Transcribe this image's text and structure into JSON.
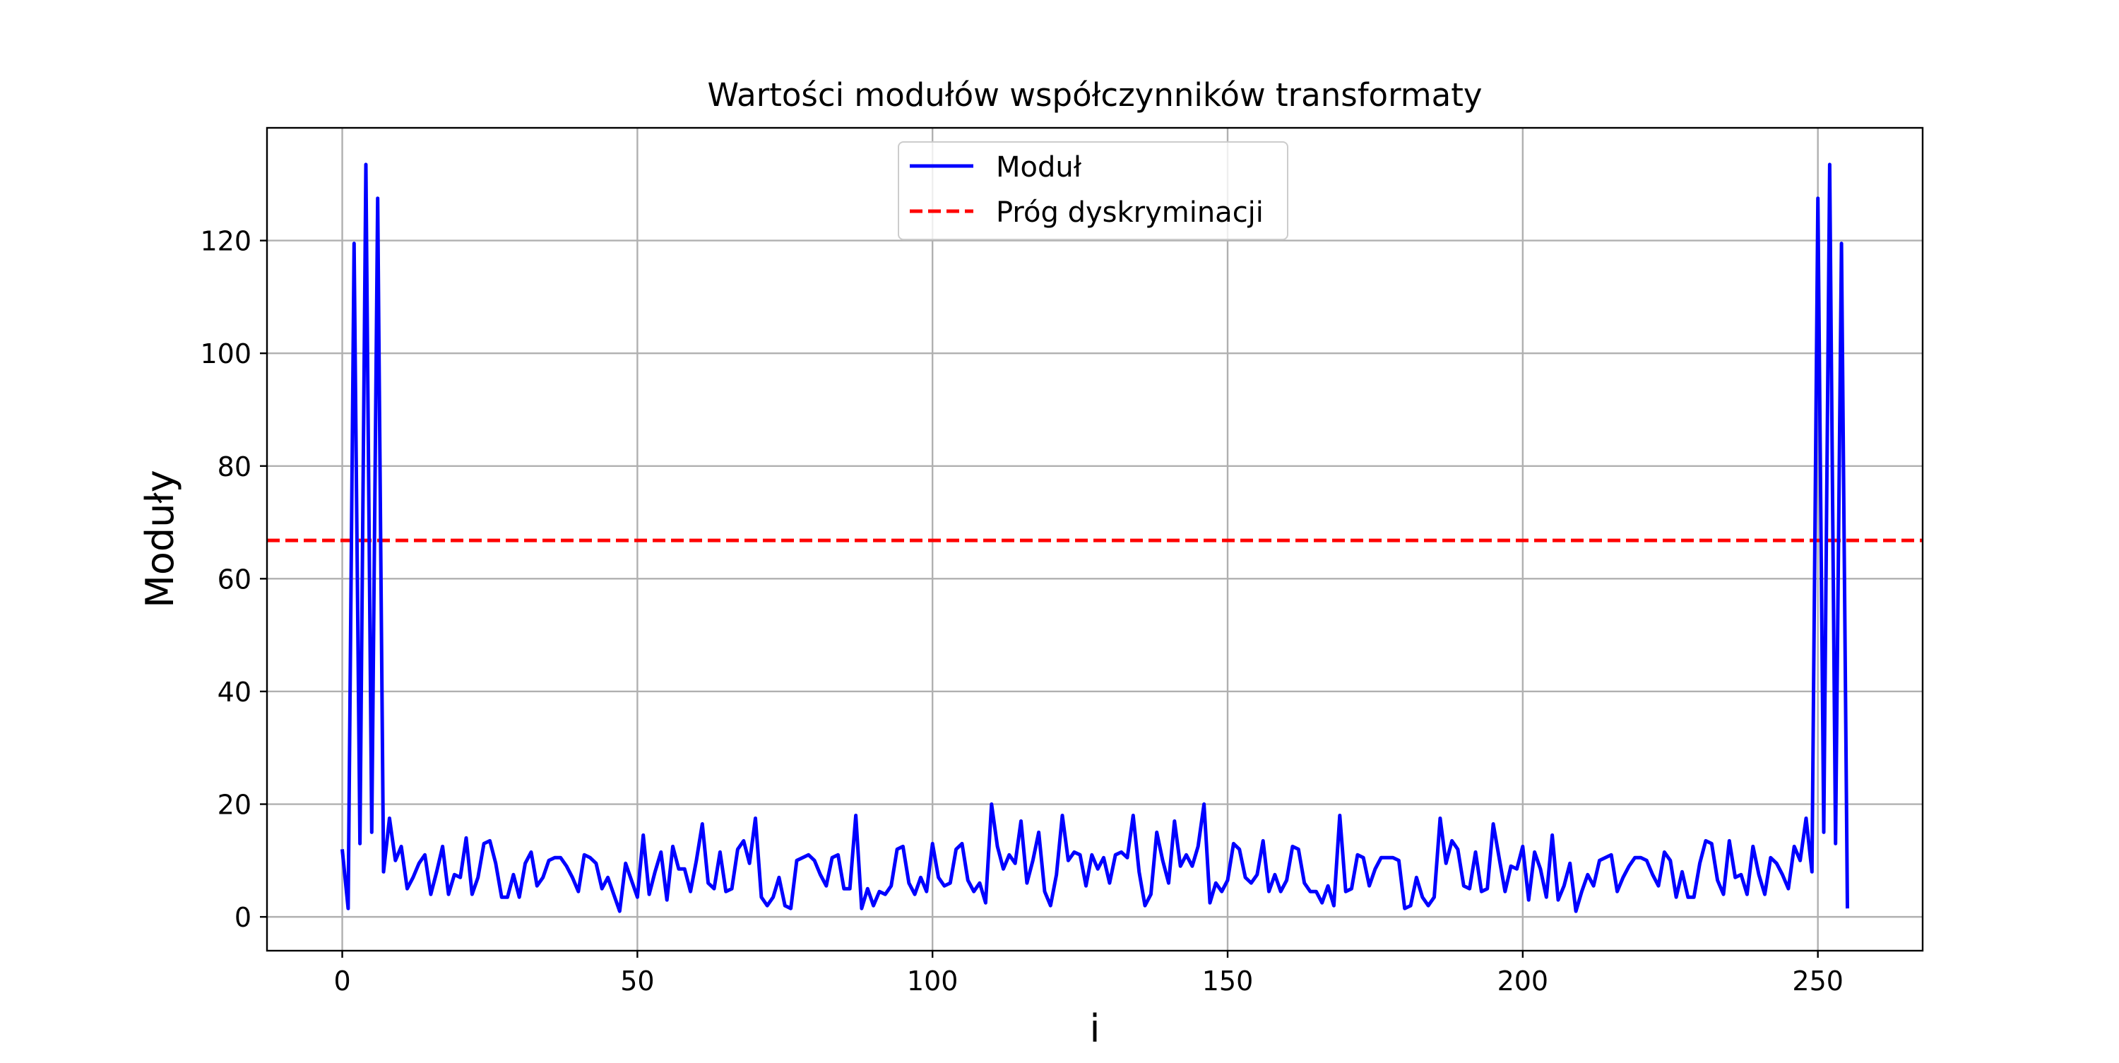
{
  "chart_data": {
    "type": "line",
    "title": "Wartości modułów współczynników transformaty",
    "xlabel": "i",
    "ylabel": "Moduły",
    "xlim": [
      -12.75,
      267.75
    ],
    "ylim": [
      -6.0,
      140.0
    ],
    "xticks": [
      0,
      50,
      100,
      150,
      200,
      250
    ],
    "yticks": [
      0,
      20,
      40,
      60,
      80,
      100,
      120
    ],
    "grid": true,
    "legend_position": "top-center",
    "series": [
      {
        "name": "Moduł",
        "style": "solid",
        "color": "#0000ff",
        "x": [
          0,
          1,
          2,
          3,
          4,
          5,
          6,
          7,
          8,
          9,
          10,
          11,
          12,
          13,
          14,
          15,
          16,
          17,
          18,
          19,
          20,
          21,
          22,
          23,
          24,
          25,
          26,
          27,
          28,
          29,
          30,
          31,
          32,
          33,
          34,
          35,
          36,
          37,
          38,
          39,
          40,
          41,
          42,
          43,
          44,
          45,
          46,
          47,
          48,
          49,
          50,
          51,
          52,
          53,
          54,
          55,
          56,
          57,
          58,
          59,
          60,
          61,
          62,
          63,
          64,
          65,
          66,
          67,
          68,
          69,
          70,
          71,
          72,
          73,
          74,
          75,
          76,
          77,
          78,
          79,
          80,
          81,
          82,
          83,
          84,
          85,
          86,
          87,
          88,
          89,
          90,
          91,
          92,
          93,
          94,
          95,
          96,
          97,
          98,
          99,
          100,
          101,
          102,
          103,
          104,
          105,
          106,
          107,
          108,
          109,
          110,
          111,
          112,
          113,
          114,
          115,
          116,
          117,
          118,
          119,
          120,
          121,
          122,
          123,
          124,
          125,
          126,
          127,
          128,
          129,
          130,
          131,
          132,
          133,
          134,
          135,
          136,
          137,
          138,
          139,
          140,
          141,
          142,
          143,
          144,
          145,
          146,
          147,
          148,
          149,
          150,
          151,
          152,
          153,
          154,
          155,
          156,
          157,
          158,
          159,
          160,
          161,
          162,
          163,
          164,
          165,
          166,
          167,
          168,
          169,
          170,
          171,
          172,
          173,
          174,
          175,
          176,
          177,
          178,
          179,
          180,
          181,
          182,
          183,
          184,
          185,
          186,
          187,
          188,
          189,
          190,
          191,
          192,
          193,
          194,
          195,
          196,
          197,
          198,
          199,
          200,
          201,
          202,
          203,
          204,
          205,
          206,
          207,
          208,
          209,
          210,
          211,
          212,
          213,
          214,
          215,
          216,
          217,
          218,
          219,
          220,
          221,
          222,
          223,
          224,
          225,
          226,
          227,
          228,
          229,
          230,
          231,
          232,
          233,
          234,
          235,
          236,
          237,
          238,
          239,
          240,
          241,
          242,
          243,
          244,
          245,
          246,
          247,
          248,
          249,
          250,
          251,
          252,
          253,
          254,
          255
        ],
        "values": [
          12.0,
          1.5,
          119.5,
          13.0,
          133.5,
          15.0,
          127.5,
          8.0,
          17.5,
          10.0,
          12.5,
          5.0,
          7.0,
          9.5,
          11.0,
          4.0,
          8.0,
          12.5,
          4.0,
          7.5,
          7.0,
          14.0,
          4.0,
          7.0,
          13.0,
          13.5,
          9.5,
          3.5,
          3.5,
          7.5,
          3.5,
          9.5,
          11.5,
          5.5,
          7.0,
          10.0,
          10.5,
          10.5,
          9.0,
          7.0,
          4.5,
          11.0,
          10.5,
          9.5,
          5.0,
          7.0,
          4.0,
          1.0,
          9.5,
          6.5,
          3.5,
          14.5,
          4.0,
          8.0,
          11.5,
          3.0,
          12.5,
          8.5,
          8.5,
          4.5,
          10.0,
          16.5,
          6.0,
          5.0,
          11.5,
          4.5,
          5.0,
          12.0,
          13.5,
          9.5,
          17.5,
          3.5,
          2.0,
          3.5,
          7.0,
          2.0,
          1.5,
          10.0,
          10.5,
          11.0,
          10.0,
          7.5,
          5.5,
          10.5,
          11.0,
          5.0,
          5.0,
          18.0,
          1.5,
          5.0,
          2.0,
          4.5,
          4.0,
          5.5,
          12.0,
          12.5,
          6.0,
          4.0,
          7.0,
          4.5,
          13.0,
          7.0,
          5.5,
          6.0,
          12.0,
          13.0,
          6.5,
          4.5,
          6.0,
          2.5,
          20.0,
          12.5,
          8.5,
          11.0,
          9.5,
          17.0,
          6.0,
          10.0,
          15.0,
          4.5,
          2.0,
          7.5,
          18.0,
          10.0,
          11.5,
          11.0,
          5.5,
          11.0,
          8.5,
          10.5,
          6.0,
          11.0,
          11.5,
          10.5,
          18.0,
          8.0,
          2.0,
          4.0,
          15.0,
          10.0,
          6.0,
          17.0,
          9.0,
          11.0,
          9.0,
          12.5,
          20.0,
          2.5,
          6.0,
          4.5,
          6.5,
          13.0,
          12.0,
          7.0,
          6.0,
          7.5,
          13.5,
          4.5,
          7.5,
          4.5,
          6.5,
          12.5,
          12.0,
          6.0,
          4.5,
          4.5,
          2.5,
          5.5,
          2.0,
          18.0,
          4.5,
          5.0,
          11.0,
          10.5,
          5.5,
          8.5,
          10.5,
          10.5,
          10.5,
          10.0,
          1.5,
          2.0,
          7.0,
          3.5,
          2.0,
          3.5,
          17.5,
          9.5,
          13.5,
          12.0,
          5.5,
          5.0,
          11.5,
          4.5,
          5.0,
          16.5,
          10.5,
          4.5,
          9.0,
          8.5,
          12.5,
          3.0,
          11.5,
          8.5,
          3.5,
          14.5,
          3.0,
          5.5,
          9.5,
          1.0,
          4.5,
          7.5,
          5.5,
          10.0,
          10.5,
          11.0,
          4.5,
          7.0,
          9.0,
          10.5,
          10.5,
          10.0,
          7.5,
          5.5,
          11.5,
          10.0,
          3.5,
          8.0,
          3.5,
          3.5,
          9.5,
          13.5,
          13.0,
          6.5,
          4.0,
          13.5,
          7.0,
          7.5,
          4.0,
          12.5,
          7.5,
          4.0,
          10.5,
          9.5,
          7.5,
          5.0,
          12.5,
          10.0,
          17.5,
          8.0,
          127.5,
          15.0,
          133.5,
          13.0,
          119.5,
          1.5
        ]
      },
      {
        "name": "Próg dyskryminacji",
        "style": "dashed",
        "color": "#ff0000",
        "constant": 66.8
      }
    ]
  }
}
